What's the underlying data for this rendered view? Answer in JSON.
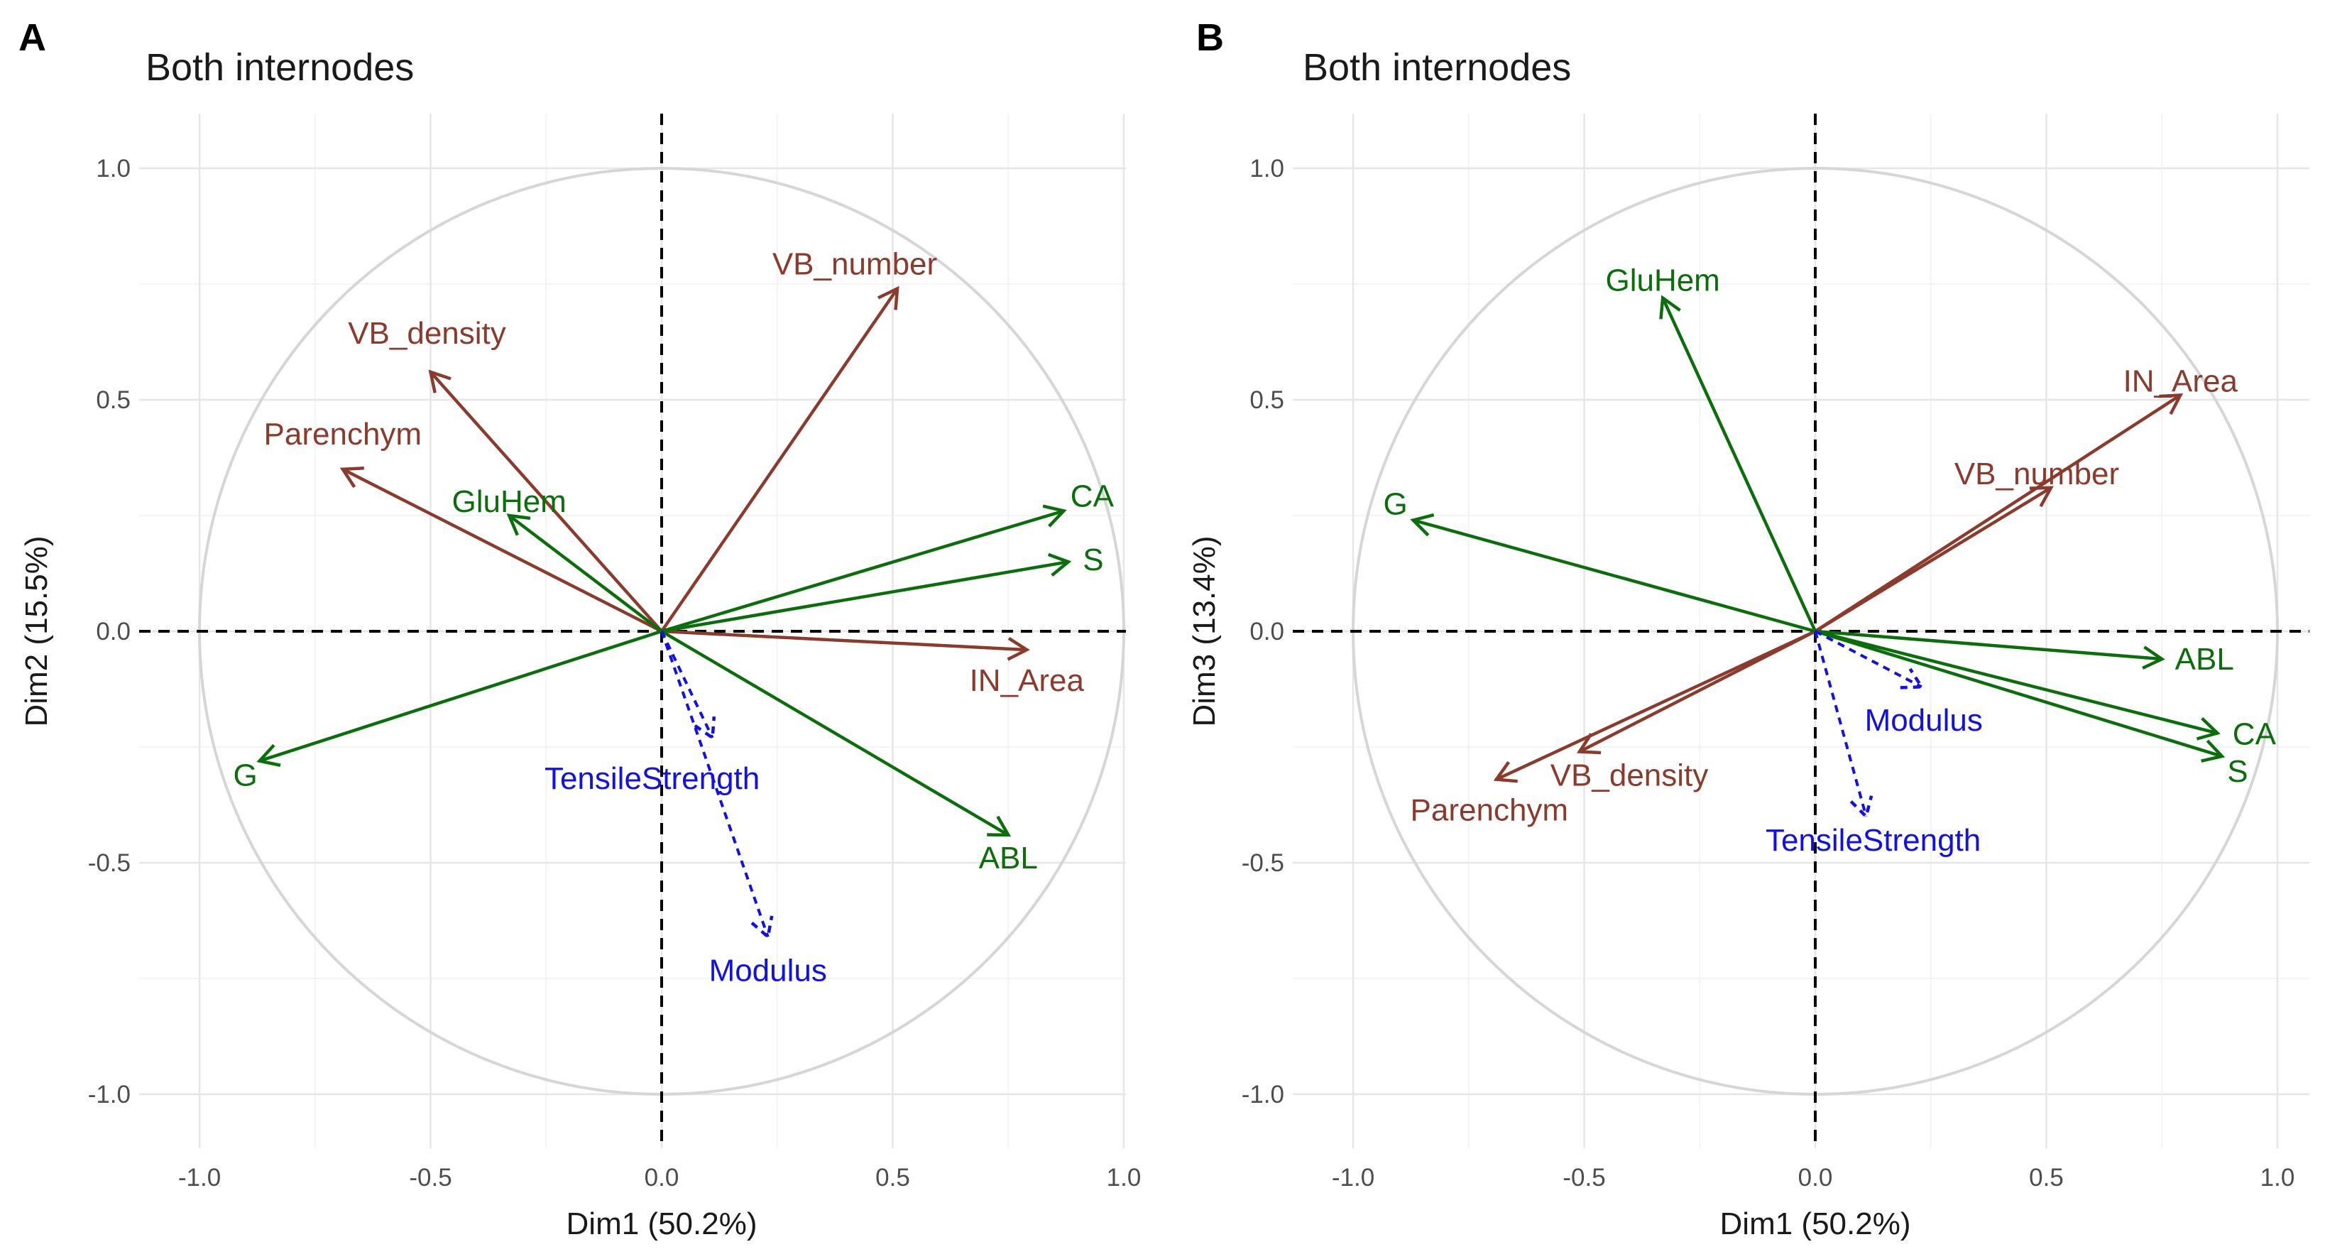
{
  "colors": {
    "quali": "#8b3a2b",
    "quanti": "#0a6e0a",
    "supplementary": "#1010e8",
    "circle": "#d6d6d6",
    "grid": "#e6e6e6"
  },
  "chart_data": [
    {
      "panel_letter": "A",
      "type": "scatter",
      "title": "Both internodes",
      "xlabel": "Dim1 (50.2%)",
      "ylabel": "Dim2 (15.5%)",
      "xlim": [
        -1.1,
        1.1
      ],
      "ylim": [
        -1.1,
        1.1
      ],
      "x_ticks": [
        -1.0,
        -0.5,
        0.0,
        0.5,
        1.0
      ],
      "y_ticks": [
        -1.0,
        -0.5,
        0.0,
        0.5,
        1.0
      ],
      "x_tick_labels": [
        "-1.0",
        "-0.5",
        "0.0",
        "0.5",
        "1.0"
      ],
      "y_tick_labels": [
        "-1.0",
        "-0.5",
        "0.0",
        "0.5",
        "1.0"
      ],
      "grid": true,
      "unit_circle": true,
      "vectors": [
        {
          "label": "VB_number",
          "x": 0.51,
          "y": 0.74,
          "group": "quali"
        },
        {
          "label": "VB_density",
          "x": -0.5,
          "y": 0.56,
          "group": "quali"
        },
        {
          "label": "Parenchym",
          "x": -0.69,
          "y": 0.35,
          "group": "quali"
        },
        {
          "label": "IN_Area",
          "x": 0.79,
          "y": -0.04,
          "group": "quali"
        },
        {
          "label": "GluHem",
          "x": -0.33,
          "y": 0.25,
          "group": "quanti"
        },
        {
          "label": "CA",
          "x": 0.87,
          "y": 0.26,
          "group": "quanti"
        },
        {
          "label": "S",
          "x": 0.88,
          "y": 0.15,
          "group": "quanti"
        },
        {
          "label": "G",
          "x": -0.87,
          "y": -0.28,
          "group": "quanti"
        },
        {
          "label": "ABL",
          "x": 0.75,
          "y": -0.44,
          "group": "quanti"
        },
        {
          "label": "TensileStrength",
          "x": 0.11,
          "y": -0.23,
          "group": "supplementary"
        },
        {
          "label": "Modulus",
          "x": 0.23,
          "y": -0.66,
          "group": "supplementary"
        }
      ]
    },
    {
      "panel_letter": "B",
      "type": "scatter",
      "title": "Both internodes",
      "xlabel": "Dim1 (50.2%)",
      "ylabel": "Dim3 (13.4%)",
      "xlim": [
        -1.1,
        1.1
      ],
      "ylim": [
        -1.1,
        1.1
      ],
      "x_ticks": [
        -1.0,
        -0.5,
        0.0,
        0.5,
        1.0
      ],
      "y_ticks": [
        -1.0,
        -0.5,
        0.0,
        0.5,
        1.0
      ],
      "x_tick_labels": [
        "-1.0",
        "-0.5",
        "0.0",
        "0.5",
        "1.0"
      ],
      "y_tick_labels": [
        "-1.0",
        "-0.5",
        "0.0",
        "0.5",
        "1.0"
      ],
      "grid": true,
      "unit_circle": true,
      "vectors": [
        {
          "label": "IN_Area",
          "x": 0.79,
          "y": 0.51,
          "group": "quali"
        },
        {
          "label": "VB_number",
          "x": 0.51,
          "y": 0.31,
          "group": "quali"
        },
        {
          "label": "VB_density",
          "x": -0.51,
          "y": -0.26,
          "group": "quali"
        },
        {
          "label": "Parenchym",
          "x": -0.69,
          "y": -0.32,
          "group": "quali"
        },
        {
          "label": "GluHem",
          "x": -0.33,
          "y": 0.72,
          "group": "quanti"
        },
        {
          "label": "G",
          "x": -0.87,
          "y": 0.24,
          "group": "quanti"
        },
        {
          "label": "ABL",
          "x": 0.75,
          "y": -0.06,
          "group": "quanti"
        },
        {
          "label": "CA",
          "x": 0.87,
          "y": -0.22,
          "group": "quanti"
        },
        {
          "label": "S",
          "x": 0.88,
          "y": -0.27,
          "group": "quanti"
        },
        {
          "label": "Modulus",
          "x": 0.23,
          "y": -0.12,
          "group": "supplementary"
        },
        {
          "label": "TensileStrength",
          "x": 0.11,
          "y": -0.4,
          "group": "supplementary"
        }
      ]
    }
  ]
}
